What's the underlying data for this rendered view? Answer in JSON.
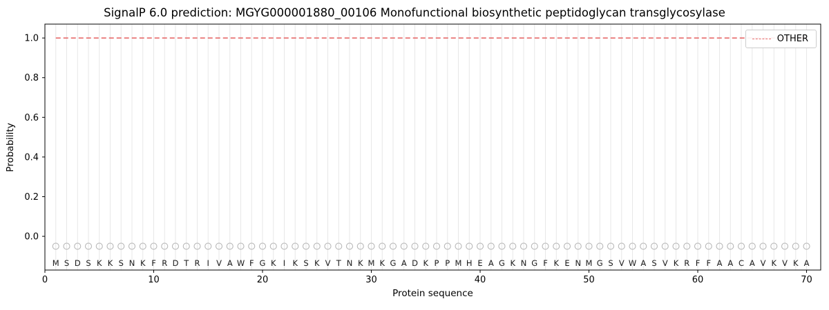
{
  "chart_data": {
    "type": "line",
    "title": "SignalP 6.0 prediction: MGYG000001880_00106 Monofunctional biosynthetic peptidoglycan transglycosylase",
    "xlabel": "Protein sequence",
    "ylabel": "Probability",
    "xlim": [
      0,
      71.3
    ],
    "ylim": [
      -0.17,
      1.07
    ],
    "x_ticks": [
      0,
      10,
      20,
      30,
      40,
      50,
      60,
      70
    ],
    "y_ticks": [
      0.0,
      0.2,
      0.4,
      0.6,
      0.8,
      1.0
    ],
    "grid": "light vertical gridline at every residue position 1-70",
    "legend_position": "upper right",
    "sequence": "MSDSKKSNKFRDTRIVAWFGKIKSKVTNKMKGADKPPMHEAGKNGFKENMGSVWASVKRFFAACAVKVKA",
    "series": [
      {
        "name": "OTHER",
        "type": "line",
        "line_style": "dashed",
        "color": "#e66a6a",
        "x_start": 1,
        "x_end": 70,
        "constant_value": 1.0
      }
    ],
    "residue_markers": {
      "shape": "open-circle",
      "y": -0.05,
      "color": "#b8b8b8",
      "positions": "1-70 (one per residue)"
    },
    "colors": {
      "other_line": "#e66a6a",
      "gridline": "#e7e7e7",
      "marker_stroke": "#b8b8b8",
      "axis": "#000000",
      "background": "#ffffff"
    }
  }
}
